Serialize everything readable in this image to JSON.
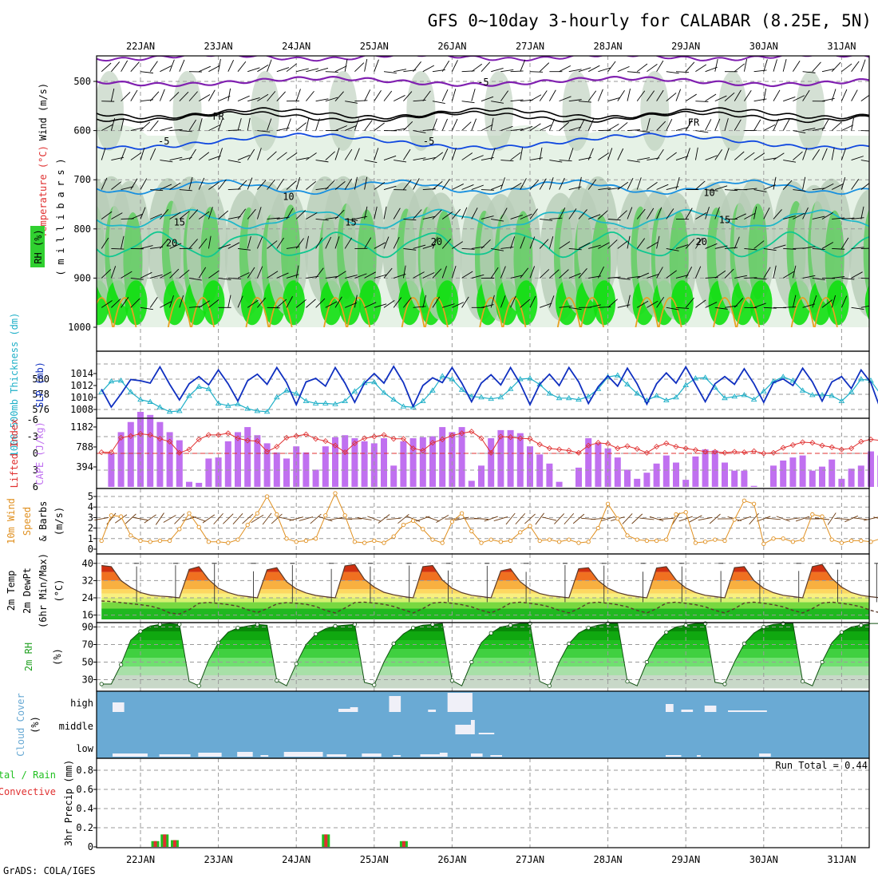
{
  "title": "GFS 0~10day 3-hourly for CALABAR (8.25E, 5N)",
  "credit": "GrADS: COLA/IGES",
  "run_total_label": "Run Total = 0.44",
  "colors": {
    "temperature_contour": "#10c0a0",
    "contour_5": "#1048e0",
    "contour_10": "#1890e0",
    "contour_15": "#20b8c8",
    "contour_20": "#10c890",
    "contour_25": "#e8a020",
    "contour_minus5": "#8020b0",
    "freezing": "#000000",
    "rh_light": "#e6f2e6",
    "rh_mid": "#b8ccb8",
    "rh_dark": "#60cc60",
    "rh_max": "#10e010",
    "slp": "#1030c0",
    "thickness": "#20b0c8",
    "lifted_index": "#e03030",
    "cape": "#c070f0",
    "wind10m": "#e09020",
    "cloud_bg": "#6aaad4",
    "cloud_bar": "#f0f0f8",
    "precip_total": "#20c020",
    "precip_conv": "#e03030"
  },
  "chart_data": [
    {
      "panel": "upper-air",
      "type": "heatmap",
      "x_ticks": [
        "22JAN",
        "23JAN",
        "24JAN",
        "25JAN",
        "26JAN",
        "27JAN",
        "28JAN",
        "29JAN",
        "30JAN",
        "31JAN"
      ],
      "y_ticks": [
        500,
        600,
        700,
        800,
        900,
        1000
      ],
      "ylabel_wind": "Wind (m/s)",
      "ylabel_temp": "Temperature (°C)",
      "ylabel_rh": "RH (%)",
      "ylabel_units": "(millibars)",
      "ylabel_units_letters": [
        "(",
        "m",
        "i",
        "l",
        "l",
        "i",
        "b",
        "a",
        "r",
        "s",
        ")"
      ],
      "contour_labels": [
        {
          "text": "-5",
          "pressure": 500,
          "day": 4.4
        },
        {
          "text": "FR",
          "pressure": 570,
          "day": 1.0
        },
        {
          "text": "FR",
          "pressure": 582,
          "day": 7.1
        },
        {
          "text": "-5",
          "pressure": 620,
          "day": 0.3
        },
        {
          "text": "-5",
          "pressure": 620,
          "day": 3.7
        },
        {
          "text": "10",
          "pressure": 733,
          "day": 1.9
        },
        {
          "text": "10",
          "pressure": 725,
          "day": 7.3
        },
        {
          "text": "15",
          "pressure": 785,
          "day": 0.5
        },
        {
          "text": "15",
          "pressure": 785,
          "day": 2.7
        },
        {
          "text": "15",
          "pressure": 780,
          "day": 7.5
        },
        {
          "text": "20",
          "pressure": 827,
          "day": 0.4
        },
        {
          "text": "20",
          "pressure": 825,
          "day": 3.8
        },
        {
          "text": "20",
          "pressure": 825,
          "day": 7.2
        }
      ]
    },
    {
      "panel": "thickness-slp",
      "type": "line",
      "label_left": "1000-500mb Thickness (dm)",
      "label_right": "SLP (mb)",
      "thickness_ticks": [
        576,
        578,
        580
      ],
      "slp_ticks": [
        1008,
        1010,
        1012,
        1014
      ],
      "series": [
        {
          "name": "SLP (mb)",
          "values": [
            1011.4,
            1008.4,
            1010.6,
            1013.0,
            1012.8,
            1012.4,
            1015.1,
            1012.2,
            1009.6,
            1012.3,
            1013.5,
            1012.1,
            1014.6,
            1012.3,
            1009.4,
            1012.8,
            1013.9,
            1012.2,
            1015.0,
            1012.5,
            1008.8,
            1012.6,
            1013.2,
            1011.9,
            1015.0,
            1012.4,
            1009.2,
            1012.4,
            1014.0,
            1012.4,
            1015.2,
            1012.5,
            1008.5,
            1012.0,
            1013.3,
            1012.5,
            1015.0,
            1012.4,
            1009.3,
            1012.4,
            1013.8,
            1012.1,
            1015.0,
            1012.3,
            1008.8,
            1012.2,
            1013.9,
            1012.0,
            1015.0,
            1012.6,
            1009.0,
            1011.8,
            1013.6,
            1011.9,
            1014.9,
            1012.3,
            1008.9,
            1012.3,
            1014.1,
            1012.4,
            1015.1,
            1012.2,
            1009.3,
            1012.3,
            1013.5,
            1012.2,
            1014.8,
            1012.3,
            1009.2,
            1012.5,
            1013.1,
            1012.0,
            1014.9,
            1012.6,
            1009.4,
            1012.6,
            1013.5,
            1011.5,
            1014.6,
            1012.5,
            1008.0,
            1011.6,
            1013.1
          ]
        },
        {
          "name": "1000-500mb Thickness (dm)",
          "values": [
            578.3,
            579.7,
            579.8,
            578.3,
            577.3,
            577.0,
            576.3,
            575.7,
            575.8,
            577.8,
            579.0,
            578.7,
            576.8,
            576.5,
            576.7,
            576.1,
            575.8,
            575.7,
            577.6,
            578.5,
            578.1,
            577.1,
            576.8,
            576.8,
            576.7,
            577.1,
            578.4,
            579.5,
            579.6,
            578.2,
            577.3,
            576.4,
            576.3,
            577.1,
            578.5,
            580.4,
            580.0,
            578.6,
            577.7,
            577.6,
            577.4,
            577.6,
            578.7,
            580.0,
            580.1,
            579.3,
            578.1,
            577.5,
            577.5,
            577.3,
            577.7,
            578.7,
            580.3,
            580.5,
            579.3,
            578.1,
            577.2,
            577.8,
            577.2,
            577.6,
            579.2,
            580.1,
            580.2,
            578.9,
            577.5,
            577.7,
            577.9,
            577.3,
            578.4,
            579.7,
            580.3,
            579.8,
            578.5,
            577.9,
            577.9,
            577.8,
            577.1,
            578.3,
            580.0,
            579.8,
            578.0,
            577.4,
            576.5
          ]
        }
      ]
    },
    {
      "panel": "cape-li",
      "type": "bar",
      "label_left": "Lifted Index",
      "label_right": "CAPE (J/kg)",
      "li_ticks": [
        "-6",
        "-3",
        "0",
        "3",
        "6"
      ],
      "cape_ticks": [
        394,
        788,
        1182
      ],
      "series": [
        {
          "name": "CAPE (J/kg)",
          "values": [
            0,
            670,
            1080,
            1280,
            1480,
            1420,
            1280,
            1080,
            920,
            100,
            80,
            560,
            580,
            900,
            1080,
            1180,
            1020,
            860,
            680,
            560,
            800,
            680,
            340,
            800,
            980,
            1020,
            960,
            900,
            860,
            960,
            420,
            900,
            960,
            980,
            1000,
            1180,
            1080,
            1180,
            120,
            420,
            960,
            1120,
            1120,
            1060,
            800,
            640,
            460,
            100,
            0,
            380,
            960,
            860,
            760,
            580,
            340,
            160,
            280,
            460,
            620,
            480,
            140,
            600,
            740,
            720,
            480,
            320,
            320,
            20,
            0,
            420,
            520,
            580,
            620,
            320,
            400,
            540,
            160,
            360,
            420,
            700,
            620,
            320,
            640
          ]
        },
        {
          "name": "Lifted Index",
          "values": [
            -0.2,
            -0.2,
            -2.8,
            -3.1,
            -3.5,
            -3.3,
            -2.6,
            -2.1,
            -0.1,
            -0.7,
            -2.5,
            -3.3,
            -3.3,
            -3.6,
            -2.7,
            -2.3,
            -2.2,
            -0.3,
            -1.2,
            -2.8,
            -3.1,
            -3.4,
            -2.6,
            -2.2,
            -1.4,
            -0.2,
            -1.8,
            -2.7,
            -3.0,
            -3.3,
            -2.6,
            -2.6,
            -0.9,
            -0.5,
            -1.9,
            -2.5,
            -3.2,
            -3.6,
            -3.9,
            -2.7,
            -0.1,
            -3.0,
            -2.9,
            -2.7,
            -2.6,
            -1.6,
            -0.9,
            -0.7,
            -0.5,
            -0.1,
            -1.4,
            -1.9,
            -1.7,
            -0.9,
            -1.3,
            -0.8,
            -0.1,
            -1.2,
            -1.8,
            -1.2,
            -0.9,
            -0.6,
            -0.3,
            -0.3,
            -0.1,
            -0.3,
            -0.2,
            -0.4,
            0.0,
            -0.1,
            -1.0,
            -1.5,
            -2.0,
            -1.9,
            -1.4,
            -1.1,
            -0.7,
            -0.9,
            -2.1,
            -2.5,
            -2.3,
            -1.7,
            -1.5
          ]
        }
      ]
    },
    {
      "panel": "wind10m",
      "type": "line",
      "label_left": "10m Wind",
      "label_mid": "Speed",
      "label_right": "& Barbs",
      "units": "(m/s)",
      "y_ticks": [
        0,
        1,
        2,
        3,
        4,
        5
      ],
      "series": [
        {
          "name": "10m Wind Speed",
          "values": [
            0.8,
            3.2,
            3.1,
            1.3,
            0.8,
            0.7,
            0.8,
            0.8,
            1.9,
            3.4,
            2.1,
            0.7,
            0.7,
            0.6,
            0.9,
            2.3,
            3.4,
            5.0,
            3.3,
            1.0,
            0.7,
            0.8,
            1.0,
            3.2,
            5.3,
            3.2,
            0.7,
            0.6,
            0.8,
            0.6,
            1.2,
            2.3,
            2.7,
            1.9,
            0.9,
            0.6,
            2.6,
            3.4,
            1.7,
            0.6,
            0.9,
            0.7,
            0.8,
            1.6,
            2.2,
            0.8,
            0.9,
            0.7,
            0.9,
            0.6,
            0.7,
            2.0,
            4.3,
            2.9,
            1.3,
            0.9,
            0.8,
            0.8,
            0.9,
            3.3,
            3.5,
            0.6,
            0.7,
            0.9,
            0.8,
            2.8,
            4.6,
            4.3,
            0.5,
            1.0,
            1.0,
            0.7,
            0.9,
            3.3,
            3.1,
            0.9,
            0.6,
            0.8,
            0.8,
            0.7,
            1.0,
            1.1,
            0.7
          ]
        }
      ]
    },
    {
      "panel": "temperature",
      "type": "line",
      "label_1": "2m Temp",
      "label_2": "2m DewPt",
      "label_3": "(6hr Min/Max)",
      "units": "(°C)",
      "y_ticks": [
        16,
        24,
        32,
        40
      ],
      "series": [
        {
          "name": "2m Temp",
          "values": [
            39.0,
            38.5,
            32.0,
            28.8,
            26.5,
            25.3,
            24.8,
            24.5,
            24.0,
            37.2,
            38.5,
            32.5,
            28.5,
            26.5,
            25.2,
            24.6,
            24.0,
            37.0,
            38.0,
            31.5,
            28.2,
            26.3,
            25.1,
            24.5,
            24.0,
            38.8,
            39.5,
            32.6,
            29.0,
            26.6,
            25.4,
            24.6,
            24.0,
            38.5,
            39.0,
            32.3,
            28.5,
            26.4,
            25.2,
            24.6,
            24.0,
            36.5,
            37.5,
            31.5,
            28.0,
            26.0,
            25.0,
            24.5,
            24.0,
            37.5,
            38.0,
            32.0,
            28.5,
            26.5,
            25.3,
            24.6,
            24.0,
            37.8,
            38.5,
            32.3,
            28.6,
            26.5,
            25.2,
            24.6,
            24.0,
            38.0,
            38.5,
            32.0,
            28.5,
            26.4,
            25.2,
            24.6,
            24.0,
            38.5,
            39.5,
            33.0,
            29.0,
            26.5,
            25.2,
            24.5,
            24.0,
            23.6,
            23.4
          ]
        },
        {
          "name": "2m DewPt",
          "values": [
            22.5,
            22.3,
            21.8,
            21.3,
            20.8,
            20.2,
            19.0,
            17.0,
            16.5,
            18.5,
            21.5,
            21.9,
            21.4,
            20.9,
            20.1,
            18.5,
            17.2,
            19.0,
            21.2,
            21.8,
            21.5,
            21.0,
            20.0,
            18.2,
            17.0,
            19.3,
            21.8,
            22.0,
            21.6,
            21.0,
            20.0,
            18.5,
            17.0,
            19.0,
            21.6,
            22.0,
            21.5,
            20.8,
            19.8,
            18.2,
            17.0,
            19.0,
            21.6,
            22.0,
            21.5,
            20.8,
            19.8,
            18.2,
            17.0,
            19.0,
            21.6,
            22.0,
            21.5,
            20.8,
            19.8,
            18.2,
            17.0,
            19.0,
            21.6,
            22.0,
            21.5,
            20.8,
            19.8,
            18.2,
            17.0,
            19.0,
            21.6,
            22.0,
            21.5,
            20.8,
            19.8,
            18.2,
            17.0,
            19.0,
            21.6,
            22.0,
            21.5,
            20.8,
            19.8,
            18.2,
            17.0,
            19.0,
            21.6
          ]
        }
      ]
    },
    {
      "panel": "rh2m",
      "type": "area",
      "label": "2m RH",
      "units": "(%)",
      "y_ticks": [
        30,
        50,
        70,
        90
      ],
      "series": [
        {
          "name": "2m RH",
          "values": [
            25.0,
            25.0,
            47.0,
            75.0,
            85.0,
            91.0,
            93.0,
            94.0,
            93.0,
            28.0,
            23.0,
            52.0,
            72.0,
            84.0,
            89.0,
            91.0,
            93.0,
            92.0,
            29.0,
            23.0,
            48.0,
            70.0,
            82.0,
            88.0,
            91.0,
            92.0,
            93.0,
            27.0,
            24.0,
            50.0,
            71.0,
            82.0,
            89.0,
            92.0,
            93.0,
            94.0,
            29.0,
            23.0,
            50.0,
            72.0,
            83.0,
            90.0,
            92.0,
            94.0,
            94.0,
            28.0,
            23.0,
            50.0,
            71.0,
            83.0,
            89.0,
            92.0,
            94.0,
            94.0,
            28.0,
            23.0,
            50.0,
            72.0,
            84.0,
            90.0,
            92.0,
            94.0,
            94.0,
            27.0,
            25.0,
            50.0,
            71.0,
            83.0,
            90.0,
            93.0,
            94.0,
            94.0,
            28.0,
            23.0,
            50.0,
            72.0,
            84.0,
            90.0,
            92.0,
            94.0,
            94.0,
            27.0,
            24.0
          ]
        }
      ]
    },
    {
      "panel": "cloud-cover",
      "type": "heatmap",
      "label": "Cloud Cover",
      "units": "(%)",
      "levels": [
        "high",
        "middle",
        "low"
      ]
    },
    {
      "panel": "precip",
      "type": "bar",
      "label_left": "Total / Rain",
      "label_right": "Convective",
      "ylabel": "3hr Precip (mm)",
      "y_ticks": [
        "0",
        "0.2",
        "0.4",
        "0.6",
        "0.8"
      ],
      "x_ticks": [
        "22JAN",
        "23JAN",
        "24JAN",
        "25JAN",
        "26JAN",
        "27JAN",
        "28JAN",
        "29JAN",
        "30JAN",
        "31JAN"
      ],
      "events": [
        {
          "day": 0.19,
          "value": 0.06
        },
        {
          "day": 0.31,
          "value": 0.13
        },
        {
          "day": 0.44,
          "value": 0.07
        },
        {
          "day": 2.38,
          "value": 0.13
        },
        {
          "day": 3.38,
          "value": 0.06
        }
      ]
    }
  ]
}
